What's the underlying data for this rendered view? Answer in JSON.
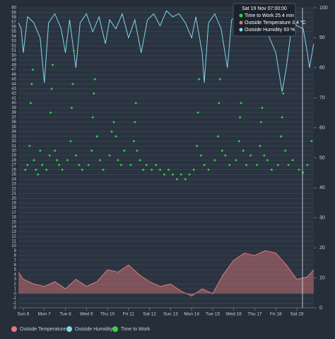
{
  "chart_data": {
    "type": "combo",
    "xlim": [
      5.765,
      19.805
    ],
    "xticks": [
      {
        "value": 6,
        "label": "Sun 6"
      },
      {
        "value": 7,
        "label": "Mon 7"
      },
      {
        "value": 8,
        "label": "Tue 8"
      },
      {
        "value": 9,
        "label": "Wed 9"
      },
      {
        "value": 10,
        "label": "Thu 10"
      },
      {
        "value": 11,
        "label": "Fri 11"
      },
      {
        "value": 12,
        "label": "Sat 12"
      },
      {
        "value": 13,
        "label": "Sun 13"
      },
      {
        "value": 14,
        "label": "Mon 14"
      },
      {
        "value": 15,
        "label": "Tue 15"
      },
      {
        "value": 16,
        "label": "Wed 16"
      },
      {
        "value": 17,
        "label": "Thu 17"
      },
      {
        "value": 18,
        "label": "Fri 18"
      },
      {
        "value": 19,
        "label": "Sat 19"
      }
    ],
    "ylim": [
      -3,
      60
    ],
    "yticks": [
      -3,
      -2,
      -1,
      0,
      1,
      2,
      3,
      4,
      5,
      6,
      7,
      8,
      9,
      10,
      11,
      12,
      13,
      14,
      15,
      16,
      17,
      18,
      19,
      20,
      21,
      22,
      23,
      24,
      25,
      26,
      27,
      28,
      29,
      30,
      31,
      32,
      33,
      34,
      35,
      36,
      37,
      38,
      39,
      40,
      41,
      42,
      43,
      44,
      45,
      46,
      47,
      48,
      49,
      50,
      51,
      52,
      53,
      54,
      55,
      56,
      57,
      58,
      59,
      60
    ],
    "y2lim": [
      0,
      100
    ],
    "y2ticks": [
      0,
      10,
      20,
      30,
      40,
      50,
      60,
      70,
      80,
      90,
      100
    ],
    "grid": true,
    "series": [
      {
        "name": "Outside Temperature",
        "type": "area",
        "color": "#e07a7a",
        "x": [
          5.77,
          6.0,
          6.5,
          7.0,
          7.5,
          8.0,
          8.5,
          9.0,
          9.5,
          10.0,
          10.5,
          11.0,
          11.5,
          12.0,
          12.5,
          13.0,
          13.5,
          14.0,
          14.5,
          15.0,
          15.5,
          16.0,
          16.5,
          17.0,
          17.5,
          18.0,
          18.5,
          19.0,
          19.5,
          19.8
        ],
        "values": [
          4.5,
          3,
          2,
          1.5,
          2.5,
          1,
          3,
          1.5,
          2.5,
          5,
          4.5,
          6,
          4,
          2.5,
          1.5,
          2,
          0.5,
          -0.5,
          1,
          0,
          4,
          7,
          8.5,
          8,
          9,
          8.5,
          6,
          3,
          3.5,
          5
        ]
      },
      {
        "name": "Outside Humidity",
        "type": "line",
        "axis": "y2",
        "color": "#7fd8e8",
        "x": [
          5.77,
          5.9,
          6.0,
          6.2,
          6.5,
          6.8,
          7.0,
          7.2,
          7.5,
          7.8,
          8.0,
          8.2,
          8.5,
          8.7,
          9.0,
          9.3,
          9.6,
          9.9,
          10.1,
          10.4,
          10.7,
          11.0,
          11.3,
          11.6,
          11.9,
          12.2,
          12.5,
          12.8,
          13.1,
          13.4,
          13.7,
          14.0,
          14.2,
          14.5,
          14.6,
          14.8,
          15.1,
          15.4,
          15.7,
          15.9,
          16.2,
          16.5,
          16.8,
          17.1,
          17.4,
          17.7,
          18.0,
          18.3,
          18.5,
          18.8,
          19.0,
          19.3,
          19.5,
          19.6,
          19.8
        ],
        "values": [
          95,
          93,
          85,
          97,
          95,
          90,
          75,
          95,
          98,
          93,
          85,
          96,
          80,
          95,
          98,
          92,
          97,
          88,
          96,
          93,
          98,
          90,
          96,
          85,
          96,
          98,
          94,
          99,
          97,
          98,
          95,
          90,
          97,
          85,
          75,
          95,
          98,
          93,
          80,
          96,
          98,
          94,
          97,
          92,
          96,
          90,
          85,
          72,
          80,
          96,
          94,
          93,
          85,
          80,
          88
        ]
      },
      {
        "name": "Time to Work",
        "type": "scatter",
        "color": "#35d14a",
        "x": [
          6.1,
          6.2,
          6.3,
          6.35,
          6.4,
          6.45,
          6.5,
          6.6,
          6.7,
          6.8,
          6.9,
          7.1,
          7.25,
          7.3,
          7.35,
          7.4,
          7.5,
          7.6,
          7.7,
          7.85,
          8.1,
          8.25,
          8.3,
          8.35,
          8.4,
          8.5,
          8.65,
          8.8,
          9.1,
          9.25,
          9.3,
          9.35,
          9.4,
          9.5,
          9.65,
          9.8,
          10.1,
          10.2,
          10.3,
          10.4,
          10.5,
          10.65,
          10.8,
          11.1,
          11.25,
          11.3,
          11.35,
          11.4,
          11.55,
          11.7,
          11.85,
          12.1,
          12.3,
          12.5,
          12.7,
          12.9,
          13.1,
          13.3,
          13.5,
          13.7,
          13.9,
          14.1,
          14.25,
          14.3,
          14.35,
          14.45,
          14.6,
          14.8,
          15.1,
          15.25,
          15.3,
          15.35,
          15.45,
          15.6,
          15.8,
          16.1,
          16.25,
          16.3,
          16.35,
          16.45,
          16.6,
          16.8,
          17.1,
          17.25,
          17.3,
          17.35,
          17.45,
          17.6,
          17.8,
          18.1,
          18.25,
          18.3,
          18.35,
          18.45,
          18.6,
          18.8,
          19.1,
          19.29,
          19.5,
          19.7
        ],
        "values": [
          26,
          27,
          31,
          40,
          44,
          47,
          28,
          26,
          25,
          30,
          27,
          26,
          29,
          38,
          43,
          48,
          30,
          28,
          27,
          26,
          28,
          32,
          39,
          44,
          51,
          29,
          27,
          26,
          27,
          30,
          37,
          42,
          45,
          33,
          28,
          26,
          29,
          34,
          36,
          33,
          28,
          27,
          30,
          27,
          32,
          36,
          40,
          30,
          28,
          26,
          27,
          26,
          27,
          26,
          25,
          26,
          25,
          24,
          25,
          24,
          25,
          26,
          31,
          38,
          45,
          29,
          27,
          26,
          28,
          33,
          40,
          45,
          30,
          29,
          27,
          28,
          32,
          37,
          40,
          30,
          27,
          29,
          27,
          31,
          36,
          39,
          29,
          28,
          26,
          27,
          33,
          37,
          42,
          30,
          27,
          28,
          26,
          25.4,
          27,
          32
        ]
      }
    ],
    "tooltip": {
      "title": "Sat 19 Nov 07:00:00",
      "items": [
        "Time to Work 25.4 min",
        "Outside Temperature 3.4 °C",
        "Outside Humidity 93 %"
      ]
    }
  }
}
